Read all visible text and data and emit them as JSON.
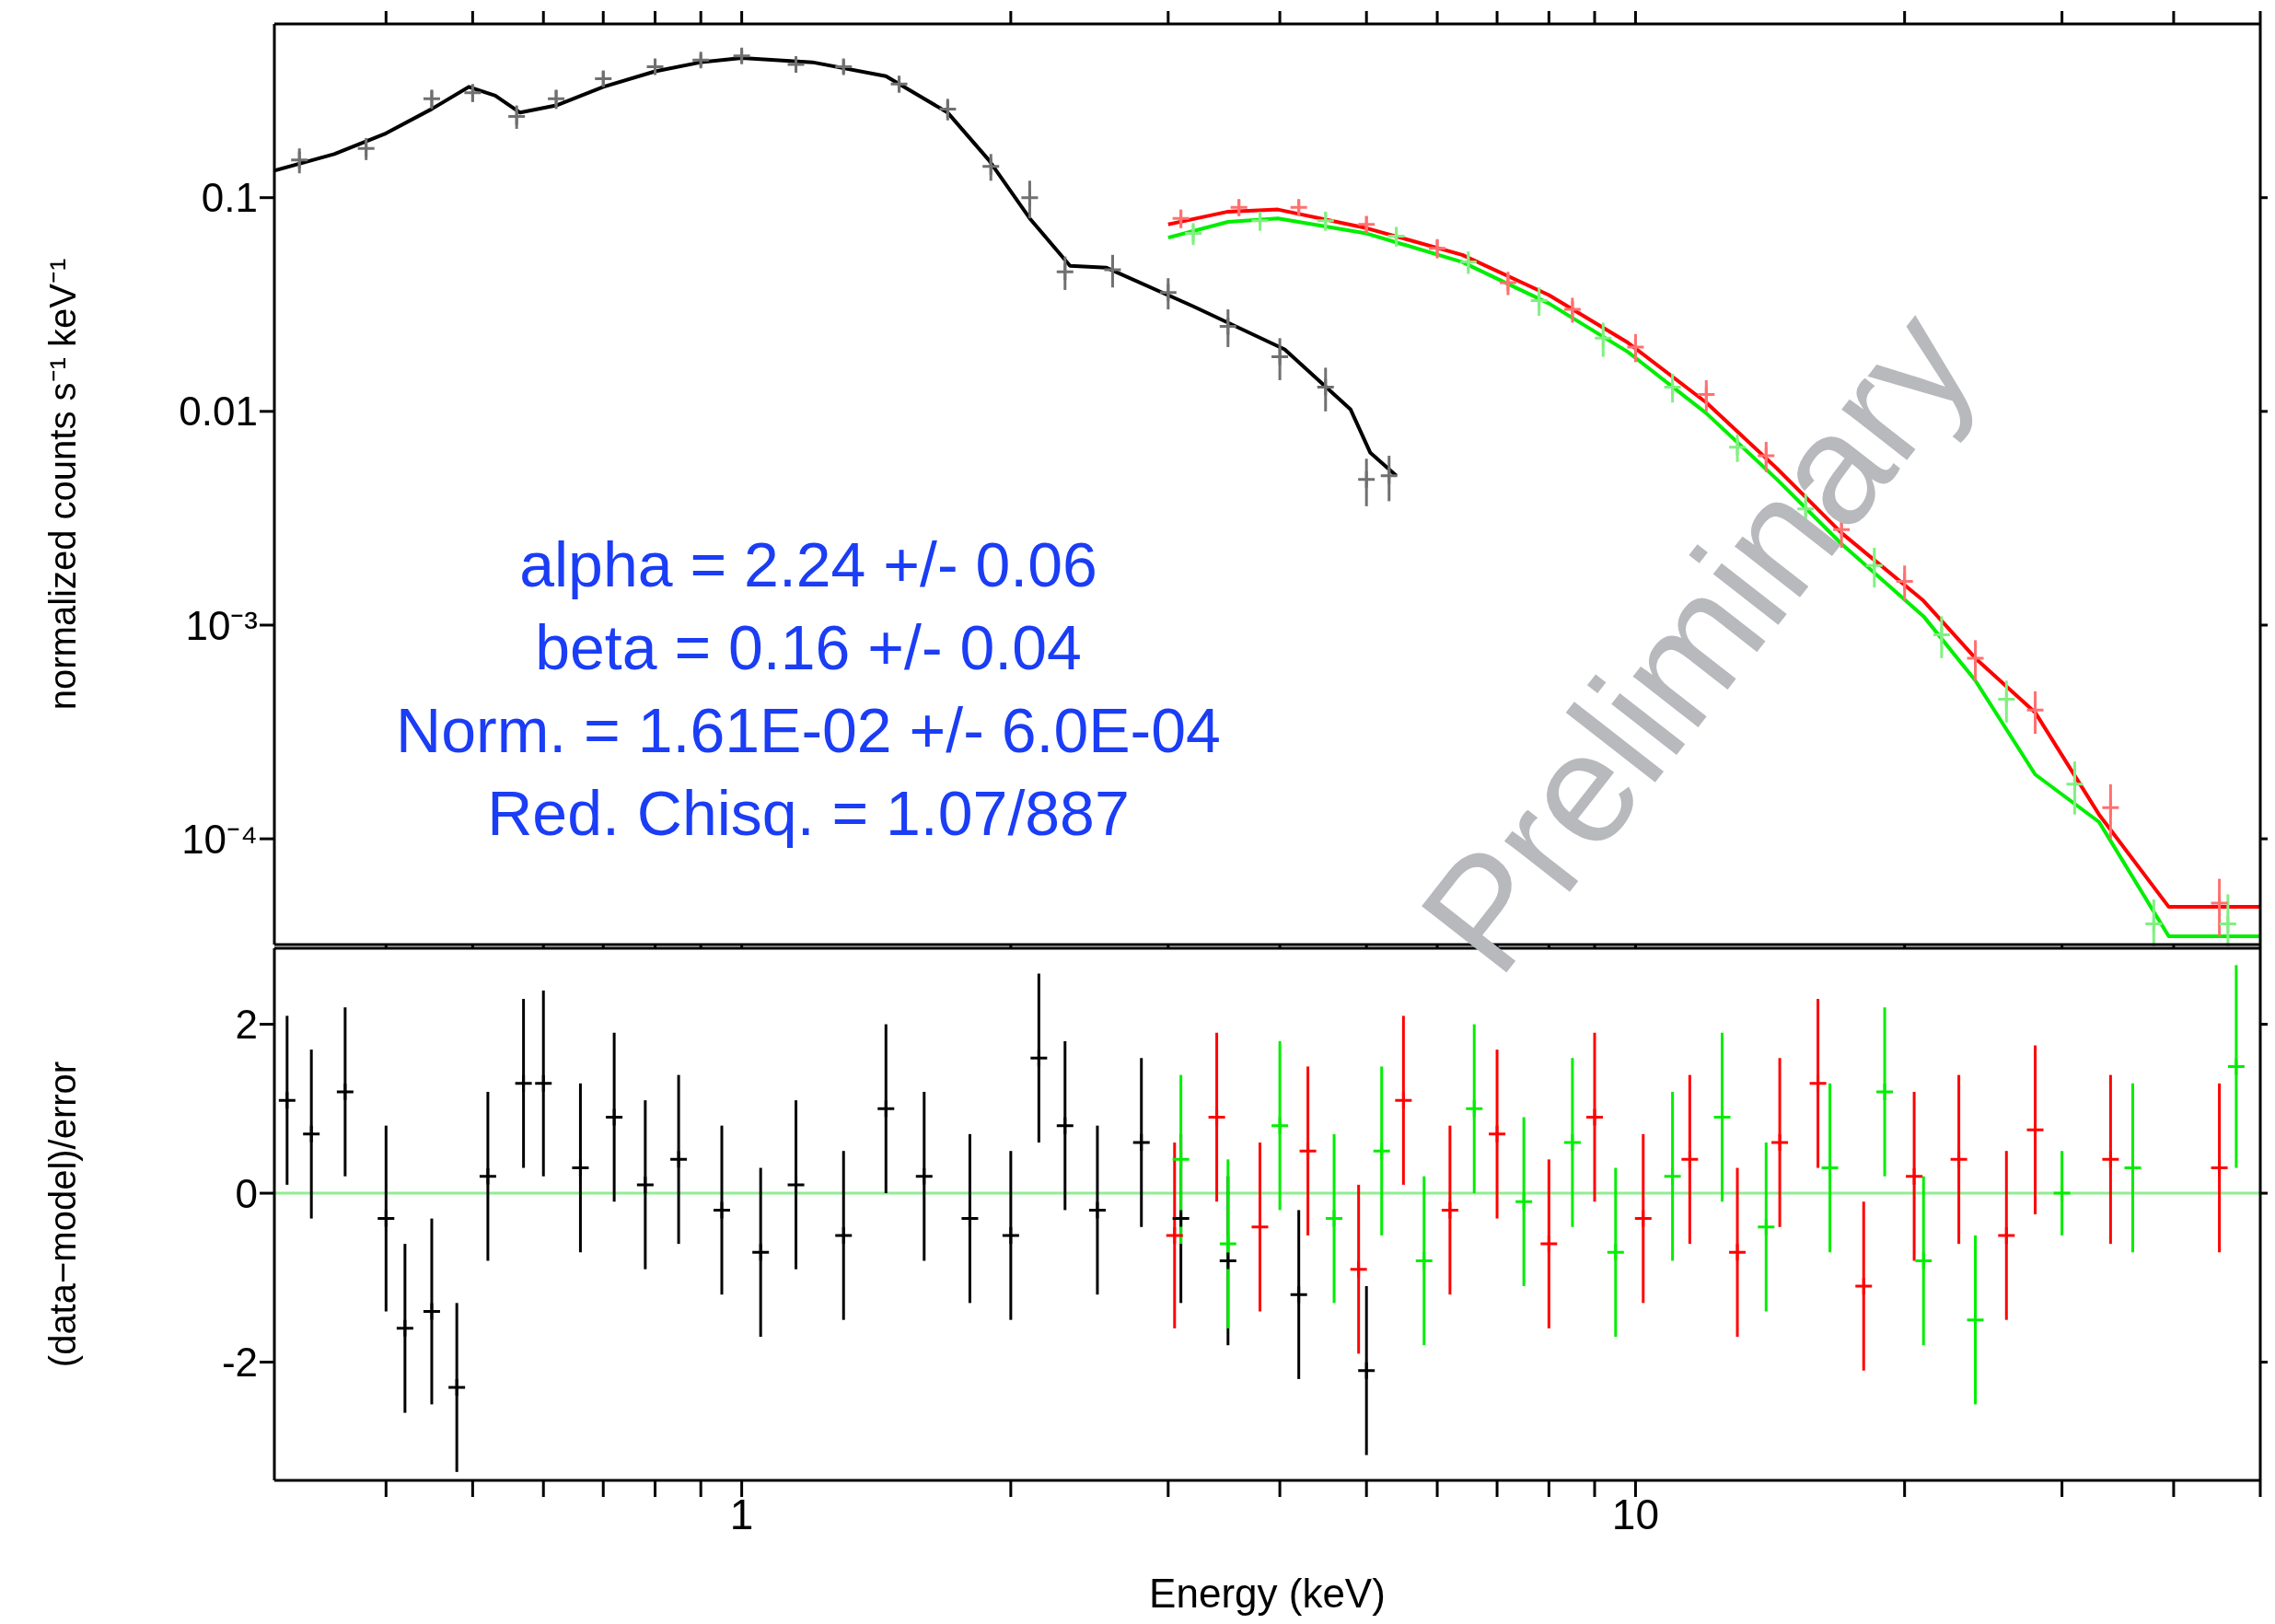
{
  "chart_data": [
    {
      "type": "line",
      "ylabel": "normalized counts s⁻¹ keV⁻¹",
      "log": "xy",
      "xlim": [
        0.3,
        50
      ],
      "ylim": [
        3.2e-05,
        0.65
      ],
      "xticks": [
        {
          "value": 0.4,
          "label": null
        },
        {
          "value": 0.5,
          "label": null
        },
        {
          "value": 0.6,
          "label": null
        },
        {
          "value": 0.7,
          "label": null
        },
        {
          "value": 0.8,
          "label": null
        },
        {
          "value": 0.9,
          "label": null
        },
        {
          "value": 1,
          "label": null
        },
        {
          "value": 2,
          "label": null
        },
        {
          "value": 3,
          "label": null
        },
        {
          "value": 4,
          "label": null
        },
        {
          "value": 5,
          "label": null
        },
        {
          "value": 6,
          "label": null
        },
        {
          "value": 7,
          "label": null
        },
        {
          "value": 8,
          "label": null
        },
        {
          "value": 9,
          "label": null
        },
        {
          "value": 10,
          "label": null
        },
        {
          "value": 20,
          "label": null
        },
        {
          "value": 30,
          "label": null
        },
        {
          "value": 40,
          "label": null
        },
        {
          "value": 50,
          "label": null
        }
      ],
      "yticks": [
        {
          "value": 0.0001,
          "label": "10⁻⁴"
        },
        {
          "value": 0.001,
          "label": "10⁻³"
        },
        0.01,
        0.1
      ],
      "tick_labels": "y",
      "annotations": [
        "alpha = 2.24 +/- 0.06",
        "beta = 0.16 +/- 0.04",
        "Norm. = 1.61E-02 +/- 6.0E-04",
        "Red. Chisq. = 1.07/887",
        "Preliminary"
      ],
      "series": [
        {
          "type": "scatter",
          "marker": "cross",
          "color": "#707070",
          "x": [
            0.32,
            0.38,
            0.45,
            0.5,
            0.56,
            0.62,
            0.7,
            0.8,
            0.9,
            1.0,
            1.15,
            1.3,
            1.5,
            1.7,
            1.9,
            2.1,
            2.3,
            2.6,
            3.0,
            3.5,
            4.0,
            4.5,
            5.0,
            5.3
          ],
          "values": [
            0.15,
            0.17,
            0.29,
            0.31,
            0.24,
            0.29,
            0.36,
            0.41,
            0.44,
            0.46,
            0.42,
            0.41,
            0.34,
            0.26,
            0.14,
            0.1,
            0.045,
            0.046,
            0.036,
            0.025,
            0.018,
            0.013,
            0.0048,
            0.005
          ],
          "errors": [
            0.02,
            0.02,
            0.03,
            0.03,
            0.03,
            0.03,
            0.03,
            0.03,
            0.03,
            0.03,
            0.03,
            0.03,
            0.03,
            0.03,
            0.02,
            0.02,
            0.008,
            0.008,
            0.006,
            0.005,
            0.004,
            0.003,
            0.0012,
            0.0012
          ]
        },
        {
          "marker": "none",
          "color": "#000000",
          "x": [
            0.3,
            0.35,
            0.4,
            0.45,
            0.495,
            0.53,
            0.565,
            0.62,
            0.7,
            0.8,
            0.9,
            1.0,
            1.2,
            1.45,
            1.7,
            1.89,
            2.1,
            2.33,
            2.56,
            3.2,
            4.05,
            4.8,
            5.05,
            5.4
          ],
          "values": [
            0.134,
            0.16,
            0.2,
            0.26,
            0.33,
            0.3,
            0.25,
            0.27,
            0.33,
            0.39,
            0.43,
            0.45,
            0.43,
            0.37,
            0.25,
            0.15,
            0.08,
            0.048,
            0.047,
            0.031,
            0.0195,
            0.0102,
            0.0064,
            0.005
          ]
        },
        {
          "type": "scatter",
          "marker": "cross",
          "color": "#ff7070",
          "x": [
            3.1,
            3.6,
            4.2,
            5.0,
            6.0,
            7.2,
            8.5,
            10,
            12,
            14,
            17,
            20,
            24,
            28,
            34,
            45
          ],
          "values": [
            0.08,
            0.09,
            0.09,
            0.075,
            0.058,
            0.04,
            0.03,
            0.02,
            0.012,
            0.0062,
            0.0028,
            0.0016,
            0.0007,
            0.0004,
            0.00014,
            5e-05
          ],
          "errors": [
            0.008,
            0.008,
            0.008,
            0.007,
            0.006,
            0.005,
            0.004,
            0.003,
            0.002,
            0.001,
            0.0005,
            0.0003,
            0.00015,
            9e-05,
            4e-05,
            1.5e-05
          ]
        },
        {
          "marker": "none",
          "color": "#ff0000",
          "x": [
            3.0,
            3.5,
            3.98,
            5,
            6.4,
            8,
            9.8,
            12,
            14.4,
            17,
            21,
            24,
            28,
            33,
            39.5,
            50
          ],
          "values": [
            0.075,
            0.086,
            0.088,
            0.072,
            0.054,
            0.035,
            0.021,
            0.011,
            0.0054,
            0.0027,
            0.0013,
            0.0007,
            0.00039,
            0.00013,
            4.8e-05,
            4.8e-05
          ]
        },
        {
          "type": "scatter",
          "marker": "cross",
          "color": "#80f080",
          "x": [
            3.2,
            3.8,
            4.5,
            5.4,
            6.5,
            7.8,
            9.2,
            11,
            13,
            15.5,
            18.5,
            22,
            26,
            31,
            38,
            46
          ],
          "values": [
            0.068,
            0.078,
            0.078,
            0.066,
            0.05,
            0.033,
            0.022,
            0.013,
            0.0068,
            0.0035,
            0.0019,
            0.0009,
            0.00045,
            0.00018,
            4e-05,
            4e-05
          ],
          "errors": [
            0.008,
            0.008,
            0.008,
            0.007,
            0.006,
            0.005,
            0.004,
            0.002,
            0.001,
            0.0006,
            0.0004,
            0.0002,
            0.0001,
            5e-05,
            1.2e-05,
            1.5e-05
          ]
        },
        {
          "marker": "none",
          "color": "#00ee00",
          "x": [
            3.0,
            3.5,
            3.98,
            5,
            6.4,
            8,
            9.8,
            12,
            14.4,
            17,
            21,
            24,
            28,
            33,
            39.5,
            50
          ],
          "values": [
            0.065,
            0.077,
            0.08,
            0.068,
            0.05,
            0.032,
            0.019,
            0.0098,
            0.0048,
            0.0024,
            0.0011,
            0.00055,
            0.0002,
            0.00012,
            3.5e-05,
            3.5e-05
          ]
        }
      ]
    },
    {
      "type": "scatter",
      "xlabel": "Energy (keV)",
      "ylabel": "(data−model)/error",
      "log": "x",
      "xlim": [
        0.3,
        50
      ],
      "ylim": [
        -3.4,
        2.9
      ],
      "xticks": [
        {
          "value": 0.4,
          "label": null
        },
        {
          "value": 0.5,
          "label": null
        },
        {
          "value": 0.6,
          "label": null
        },
        {
          "value": 0.7,
          "label": null
        },
        {
          "value": 0.8,
          "label": null
        },
        {
          "value": 0.9,
          "label": null
        },
        1,
        {
          "value": 2,
          "label": null
        },
        {
          "value": 3,
          "label": null
        },
        {
          "value": 4,
          "label": null
        },
        {
          "value": 5,
          "label": null
        },
        {
          "value": 6,
          "label": null
        },
        {
          "value": 7,
          "label": null
        },
        {
          "value": 8,
          "label": null
        },
        {
          "value": 9,
          "label": null
        },
        10,
        {
          "value": 20,
          "label": null
        },
        {
          "value": 30,
          "label": null
        },
        {
          "value": 40,
          "label": null
        },
        {
          "value": 50,
          "label": null
        }
      ],
      "yticks": [
        -2,
        0,
        2
      ],
      "marker": "cross",
      "ref_lines": [
        {
          "axis": "y",
          "value": 0,
          "color": "#90ee90"
        }
      ],
      "series": [
        {
          "color": "#000000",
          "x": [
            0.31,
            0.33,
            0.36,
            0.4,
            0.42,
            0.45,
            0.48,
            0.52,
            0.57,
            0.6,
            0.66,
            0.72,
            0.78,
            0.85,
            0.95,
            1.05,
            1.15,
            1.3,
            1.45,
            1.6,
            1.8,
            2.0,
            2.15,
            2.3,
            2.5,
            2.8,
            3.1,
            3.5,
            4.2,
            5.0
          ],
          "values": [
            1.1,
            0.7,
            1.2,
            -0.3,
            -1.6,
            -1.4,
            -2.3,
            0.2,
            1.3,
            1.3,
            0.3,
            0.9,
            0.1,
            0.4,
            -0.2,
            -0.7,
            0.1,
            -0.5,
            1.0,
            0.2,
            -0.3,
            -0.5,
            1.6,
            0.8,
            -0.2,
            0.6,
            -0.3,
            -0.8,
            -1.2,
            -2.1
          ],
          "errors": [
            1,
            1,
            1,
            1.1,
            1,
            1.1,
            1,
            1,
            1,
            1.1,
            1,
            1,
            1,
            1,
            1,
            1,
            1,
            1,
            1,
            1,
            1,
            1,
            1,
            1,
            1,
            1,
            1,
            1,
            1,
            1
          ]
        },
        {
          "color": "#ff0000",
          "x": [
            3.05,
            3.4,
            3.8,
            4.3,
            4.9,
            5.5,
            6.2,
            7,
            8,
            9,
            10.2,
            11.5,
            13,
            14.5,
            16,
            18,
            20.5,
            23,
            26,
            28,
            34,
            45
          ],
          "values": [
            -0.5,
            0.9,
            -0.4,
            0.5,
            -0.9,
            1.1,
            -0.2,
            0.7,
            -0.6,
            0.9,
            -0.3,
            0.4,
            -0.7,
            0.6,
            1.3,
            -1.1,
            0.2,
            0.4,
            -0.5,
            0.75,
            0.4,
            0.3
          ],
          "errors": [
            1.1,
            1,
            1,
            1,
            1,
            1,
            1,
            1,
            1,
            1,
            1,
            1,
            1,
            1,
            1,
            1,
            1,
            1,
            1,
            1,
            1,
            1
          ]
        },
        {
          "color": "#00ee00",
          "x": [
            3.1,
            3.5,
            4.0,
            4.6,
            5.2,
            5.8,
            6.6,
            7.5,
            8.5,
            9.5,
            11,
            12.5,
            14,
            16.5,
            19,
            21,
            24,
            30,
            36,
            47
          ],
          "values": [
            0.4,
            -0.6,
            0.8,
            -0.3,
            0.5,
            -0.8,
            1.0,
            -0.1,
            0.6,
            -0.7,
            0.2,
            0.9,
            -0.4,
            0.3,
            1.2,
            -0.8,
            -1.5,
            0.0,
            0.3,
            1.5
          ],
          "errors": [
            1,
            1,
            1,
            1,
            1,
            1,
            1,
            1,
            1,
            1,
            1,
            1,
            1,
            1,
            1,
            1,
            1,
            0.5,
            1,
            1.2
          ]
        }
      ]
    }
  ]
}
